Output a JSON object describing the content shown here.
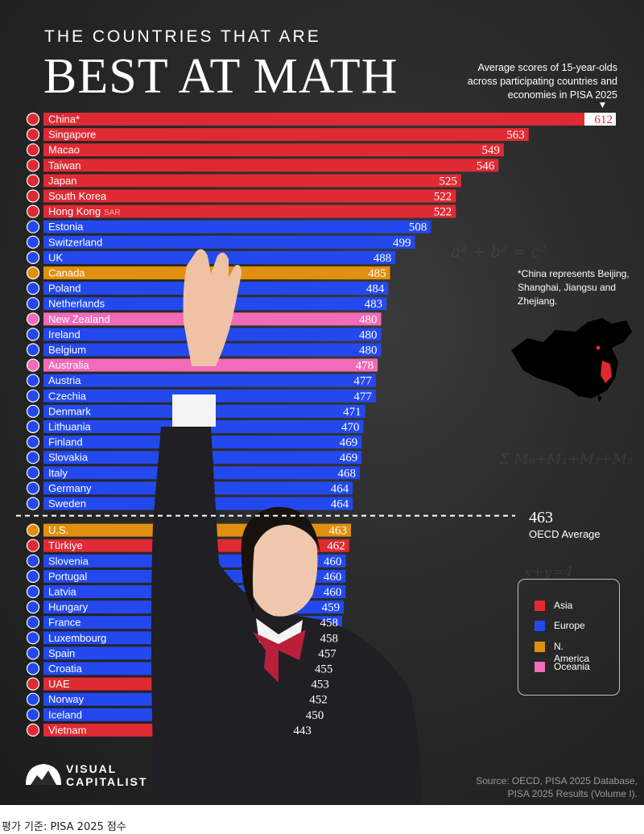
{
  "title_top": "THE COUNTRIES THAT ARE",
  "title_main": "BEST AT MATH",
  "subtitle": "Average scores of 15-year-olds across participating countries and economies in PISA 2025",
  "china_note": "*China represents Beijing, Shanghai, Jiangsu and Zhejiang.",
  "oecd": {
    "value": "463",
    "label": "OECD Average"
  },
  "legend": [
    {
      "label": "Asia",
      "color": "#e02a33"
    },
    {
      "label": "Europe",
      "color": "#2349ee"
    },
    {
      "label": "N. America",
      "color": "#e0900e"
    },
    {
      "label": "Oceania",
      "color": "#f06bb8"
    }
  ],
  "logo": {
    "line1": "VISUAL",
    "line2": "CAPITALIST"
  },
  "source": {
    "line1": "Source: OECD, PISA 2025 Database,",
    "line2": "PISA 2025 Results (Volume I)."
  },
  "caption": "평가 기준: PISA 2025 점수",
  "colors": {
    "Asia": "#e02a33",
    "Europe": "#2349ee",
    "N. America": "#e0900e",
    "Oceania": "#f06bb8"
  },
  "chart_data": {
    "type": "bar",
    "orientation": "horizontal",
    "title": "BEST AT MATH",
    "reference_line": {
      "value": 463,
      "label": "OECD Average"
    },
    "categories": [
      "China*",
      "Singapore",
      "Macao",
      "Taiwan",
      "Japan",
      "South Korea",
      "Hong Kong",
      "Estonia",
      "Switzerland",
      "UK",
      "Canada",
      "Poland",
      "Netherlands",
      "New Zealand",
      "Ireland",
      "Belgium",
      "Australia",
      "Austria",
      "Czechia",
      "Denmark",
      "Lithuania",
      "Finland",
      "Slovakia",
      "Italy",
      "Germany",
      "Sweden",
      "U.S.",
      "Türkiye",
      "Slovenia",
      "Portugal",
      "Latvia",
      "Hungary",
      "France",
      "Luxembourg",
      "Spain",
      "Croatia",
      "UAE",
      "Norway",
      "Iceland",
      "Vietnam"
    ],
    "suffixes": [
      "",
      "",
      "",
      "",
      "",
      "",
      "SAR",
      "",
      "",
      "",
      "",
      "",
      "",
      "",
      "",
      "",
      "",
      "",
      "",
      "",
      "",
      "",
      "",
      "",
      "",
      "",
      "",
      "",
      "",
      "",
      "",
      "",
      "",
      "",
      "",
      "",
      "",
      "",
      "",
      ""
    ],
    "values": [
      612,
      563,
      549,
      546,
      525,
      522,
      522,
      508,
      499,
      488,
      485,
      484,
      483,
      480,
      480,
      480,
      478,
      477,
      477,
      471,
      470,
      469,
      469,
      468,
      464,
      464,
      463,
      462,
      460,
      460,
      460,
      459,
      458,
      458,
      457,
      455,
      453,
      452,
      450,
      443
    ],
    "regions": [
      "Asia",
      "Asia",
      "Asia",
      "Asia",
      "Asia",
      "Asia",
      "Asia",
      "Europe",
      "Europe",
      "Europe",
      "N. America",
      "Europe",
      "Europe",
      "Oceania",
      "Europe",
      "Europe",
      "Oceania",
      "Europe",
      "Europe",
      "Europe",
      "Europe",
      "Europe",
      "Europe",
      "Europe",
      "Europe",
      "Europe",
      "N. America",
      "Asia",
      "Europe",
      "Europe",
      "Europe",
      "Europe",
      "Europe",
      "Europe",
      "Europe",
      "Europe",
      "Asia",
      "Europe",
      "Europe",
      "Asia"
    ]
  }
}
